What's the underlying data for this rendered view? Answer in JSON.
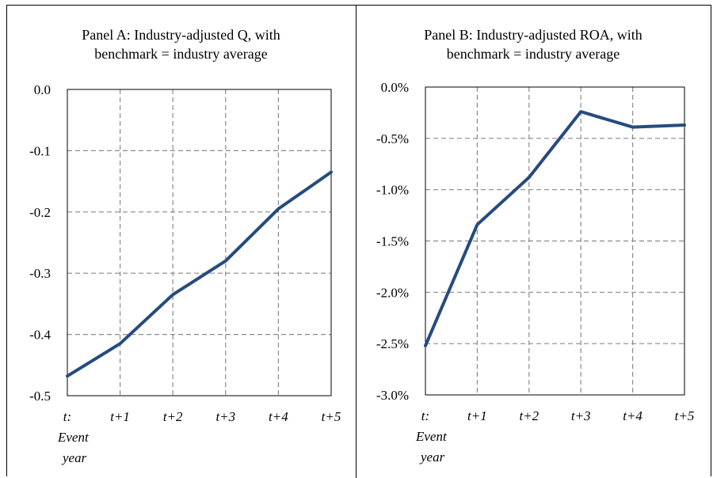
{
  "chart_data": [
    {
      "type": "line",
      "title_line1": "Panel A: Industry-adjusted Q, with",
      "title_line2": "benchmark = industry average",
      "categories": [
        "t:",
        "t+1",
        "t+2",
        "t+3",
        "t+4",
        "t+5"
      ],
      "category_sublabel": [
        "Event",
        "year"
      ],
      "ylim": [
        -0.5,
        0.0
      ],
      "yticks": [
        0.0,
        -0.1,
        -0.2,
        -0.3,
        -0.4,
        -0.5
      ],
      "ytick_labels": [
        "0.0",
        "-0.1",
        "-0.2",
        "-0.3",
        "-0.4",
        "-0.5"
      ],
      "values": [
        -0.468,
        -0.415,
        -0.335,
        -0.28,
        -0.195,
        -0.135
      ],
      "grid": true,
      "color": "#264b7f"
    },
    {
      "type": "line",
      "title_line1": "Panel B: Industry-adjusted ROA, with",
      "title_line2": "benchmark = industry average",
      "categories": [
        "t:",
        "t+1",
        "t+2",
        "t+3",
        "t+4",
        "t+5"
      ],
      "category_sublabel": [
        "Event",
        "year"
      ],
      "ylim": [
        -3.0,
        0.0
      ],
      "yticks": [
        0.0,
        -0.5,
        -1.0,
        -1.5,
        -2.0,
        -2.5,
        -3.0
      ],
      "ytick_labels": [
        "0.0%",
        "-0.5%",
        "-1.0%",
        "-1.5%",
        "-2.0%",
        "-2.5%",
        "-3.0%"
      ],
      "values": [
        -2.52,
        -1.34,
        -0.88,
        -0.24,
        -0.39,
        -0.37
      ],
      "grid": true,
      "color": "#264b7f"
    }
  ]
}
